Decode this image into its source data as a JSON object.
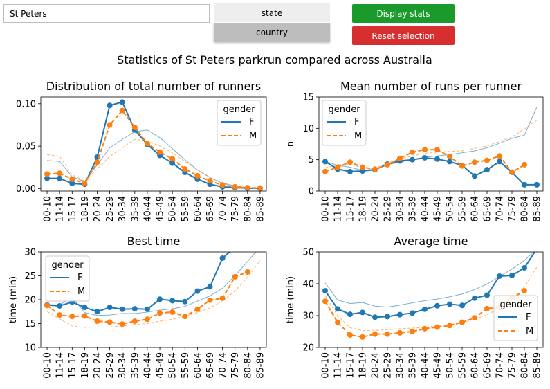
{
  "controls": {
    "search_value": "St Peters",
    "state_label": "state",
    "country_label": "country",
    "display_label": "Display stats",
    "reset_label": "Reset selection"
  },
  "colors": {
    "display_button": "#1a9a2a",
    "reset_button": "#d72f2f",
    "toggle_selected": "#bdbdbd",
    "toggle_unselected": "#eeeeee",
    "female": "#1f77b4",
    "male": "#ff7f0e"
  },
  "figure_title": "Statistics of St Peters parkrun compared across Australia",
  "chart_data": [
    {
      "type": "line",
      "title": "Distribution of total number of runners",
      "xlabel": "",
      "ylabel": "",
      "categories": [
        "00-10",
        "11-14",
        "15-17",
        "18-19",
        "20-24",
        "25-29",
        "30-34",
        "35-39",
        "40-44",
        "45-49",
        "50-54",
        "55-59",
        "60-64",
        "65-69",
        "70-74",
        "75-79",
        "80-84",
        "85-89"
      ],
      "ylim": [
        -0.003,
        0.108
      ],
      "yticks": [
        "0.00",
        "0.05",
        "0.10"
      ],
      "legend": {
        "title": "gender",
        "placement": "top-right",
        "entries": [
          "F",
          "M"
        ]
      },
      "series": [
        {
          "name": "F",
          "values": [
            0.012,
            0.012,
            0.006,
            0.005,
            0.037,
            0.098,
            0.102,
            0.069,
            0.052,
            0.039,
            0.03,
            0.019,
            0.011,
            0.005,
            0.002,
            0.001,
            0.0005,
            0.0003
          ]
        },
        {
          "name": "M",
          "values": [
            0.017,
            0.018,
            0.011,
            0.006,
            0.031,
            0.075,
            0.092,
            0.072,
            0.053,
            0.043,
            0.035,
            0.023,
            0.015,
            0.009,
            0.004,
            0.002,
            0.001,
            0.0005
          ]
        },
        {
          "name": "F (Australia)",
          "values": [
            0.033,
            0.032,
            0.014,
            0.008,
            0.028,
            0.048,
            0.058,
            0.067,
            0.069,
            0.06,
            0.047,
            0.034,
            0.022,
            0.013,
            0.006,
            0.003,
            0.001,
            0.0002
          ]
        },
        {
          "name": "M (Australia)",
          "values": [
            0.04,
            0.038,
            0.016,
            0.009,
            0.023,
            0.038,
            0.048,
            0.058,
            0.056,
            0.05,
            0.042,
            0.032,
            0.022,
            0.013,
            0.007,
            0.003,
            0.001,
            0.0003
          ]
        }
      ]
    },
    {
      "type": "line",
      "title": "Mean number of runs per runner",
      "xlabel": "",
      "ylabel": "n",
      "categories": [
        "00-10",
        "11-14",
        "15-17",
        "18-19",
        "20-24",
        "25-29",
        "30-34",
        "35-39",
        "40-44",
        "45-49",
        "50-54",
        "55-59",
        "60-64",
        "65-69",
        "70-74",
        "75-79",
        "80-84",
        "85-89"
      ],
      "ylim": [
        0,
        15
      ],
      "yticks": [
        "0",
        "5",
        "10",
        "15"
      ],
      "legend": {
        "title": "gender",
        "placement": "top-left",
        "entries": [
          "F",
          "M"
        ]
      },
      "series": [
        {
          "name": "F",
          "values": [
            4.7,
            3.5,
            3.1,
            3.2,
            3.4,
            4.3,
            4.8,
            5.0,
            5.3,
            5.1,
            4.7,
            4.1,
            2.4,
            3.4,
            4.7,
            3.0,
            1.0,
            1.0
          ]
        },
        {
          "name": "M",
          "values": [
            3.1,
            3.8,
            4.6,
            3.8,
            3.5,
            4.2,
            5.2,
            6.2,
            6.6,
            6.6,
            5.5,
            4.0,
            4.6,
            4.9,
            5.6,
            3.0,
            4.2,
            null
          ]
        },
        {
          "name": "F (Australia)",
          "values": [
            4.7,
            4.1,
            3.8,
            3.3,
            3.5,
            4.2,
            4.6,
            5.0,
            5.4,
            5.6,
            5.8,
            6.1,
            6.4,
            6.9,
            7.6,
            8.4,
            8.9,
            13.4
          ]
        },
        {
          "name": "M (Australia)",
          "values": [
            3.7,
            4.2,
            4.3,
            3.7,
            3.6,
            4.5,
            5.1,
            5.6,
            6.0,
            6.2,
            6.3,
            6.4,
            6.8,
            7.2,
            7.9,
            8.6,
            9.9,
            11.3
          ]
        }
      ]
    },
    {
      "type": "line",
      "title": "Best time",
      "xlabel": "",
      "ylabel": "time (min)",
      "categories": [
        "00-10",
        "11-14",
        "15-17",
        "18-19",
        "20-24",
        "25-29",
        "30-34",
        "35-39",
        "40-44",
        "45-49",
        "50-54",
        "55-59",
        "60-64",
        "65-69",
        "70-74",
        "75-79",
        "80-84",
        "85-89"
      ],
      "ylim": [
        10,
        30
      ],
      "yticks": [
        "10",
        "15",
        "20",
        "25",
        "30"
      ],
      "legend": {
        "title": "gender",
        "placement": "top-left",
        "entries": [
          "F",
          "M"
        ]
      },
      "series": [
        {
          "name": "F",
          "values": [
            18.9,
            18.7,
            19.5,
            18.4,
            17.5,
            18.4,
            18.0,
            18.1,
            18.0,
            20.1,
            19.8,
            19.6,
            21.8,
            22.7,
            28.7,
            31.0,
            null,
            null
          ]
        },
        {
          "name": "M",
          "values": [
            18.8,
            16.8,
            16.5,
            16.6,
            15.5,
            15.3,
            14.9,
            15.5,
            15.9,
            17.2,
            17.4,
            16.5,
            18.0,
            19.9,
            20.3,
            24.8,
            25.8,
            null
          ]
        },
        {
          "name": "F (Australia)",
          "values": [
            19.0,
            18.9,
            20.5,
            17.3,
            16.7,
            16.8,
            17.1,
            17.1,
            17.4,
            17.8,
            18.1,
            18.6,
            19.7,
            20.8,
            22.4,
            25.0,
            28.0,
            31.0
          ]
        },
        {
          "name": "M (Australia)",
          "values": [
            17.5,
            16.0,
            14.5,
            14.2,
            14.3,
            14.3,
            14.5,
            14.8,
            15.0,
            15.5,
            15.9,
            16.5,
            17.3,
            18.3,
            19.7,
            21.8,
            24.7,
            28.2
          ]
        }
      ]
    },
    {
      "type": "line",
      "title": "Average time",
      "xlabel": "",
      "ylabel": "time (min)",
      "categories": [
        "00-10",
        "11-14",
        "15-17",
        "18-19",
        "20-24",
        "25-29",
        "30-34",
        "35-39",
        "40-44",
        "45-49",
        "50-54",
        "55-59",
        "60-64",
        "65-69",
        "70-74",
        "75-79",
        "80-84",
        "85-89"
      ],
      "ylim": [
        20,
        50
      ],
      "yticks": [
        "20",
        "30",
        "40",
        "50"
      ],
      "legend": {
        "title": "gender",
        "placement": "bottom-right",
        "entries": [
          "F",
          "M"
        ]
      },
      "series": [
        {
          "name": "F",
          "values": [
            37.8,
            32.1,
            30.4,
            31.0,
            29.5,
            29.7,
            30.3,
            30.8,
            32.0,
            33.1,
            33.6,
            33.2,
            35.5,
            36.4,
            42.4,
            42.6,
            45.0,
            51.0
          ]
        },
        {
          "name": "M",
          "values": [
            34.5,
            27.9,
            23.9,
            23.3,
            24.2,
            24.2,
            24.6,
            25.0,
            25.9,
            26.4,
            26.9,
            27.9,
            29.3,
            32.2,
            32.6,
            35.5,
            37.8,
            null
          ]
        },
        {
          "name": "F (Australia)",
          "values": [
            40.3,
            34.9,
            33.8,
            34.1,
            33.0,
            32.7,
            33.3,
            34.0,
            34.7,
            35.2,
            35.9,
            36.8,
            38.2,
            39.9,
            42.3,
            44.6,
            47.3,
            51.0
          ]
        },
        {
          "name": "M (Australia)",
          "values": [
            36.3,
            30.0,
            26.2,
            25.3,
            25.4,
            25.6,
            25.9,
            26.1,
            26.3,
            26.8,
            27.2,
            27.8,
            28.9,
            30.3,
            32.3,
            35.0,
            39.0,
            45.3
          ]
        }
      ]
    }
  ]
}
